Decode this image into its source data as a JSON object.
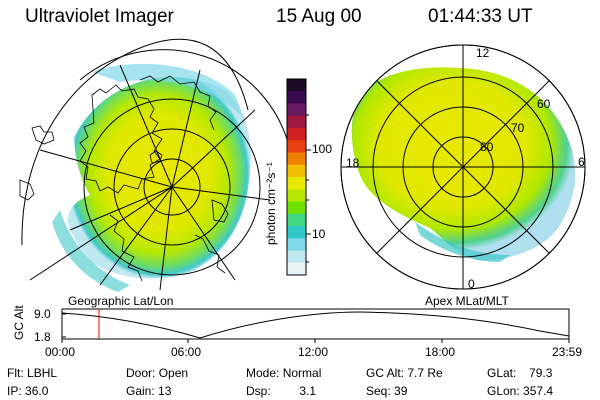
{
  "header": {
    "instrument": "Ultraviolet Imager",
    "date": "15 Aug 00",
    "time": "01:44:33 UT"
  },
  "left_map": {
    "projection_label": "Geographic Lat/Lon"
  },
  "right_map": {
    "projection_label": "Apex MLat/MLT",
    "mlt_labels": {
      "top": "12",
      "left": "18",
      "right": "6",
      "bottom": "0"
    },
    "lat_labels": [
      "60",
      "70",
      "80"
    ]
  },
  "colorbar": {
    "unit_label": "photon cm⁻²s⁻¹",
    "tick_labels": [
      "100",
      "10"
    ],
    "colors": [
      "#1a0a28",
      "#3a0a50",
      "#6a1a60",
      "#a01840",
      "#d02020",
      "#e84010",
      "#f08000",
      "#f0c000",
      "#e8e800",
      "#b8e800",
      "#70e000",
      "#40d880",
      "#30c8c8",
      "#80d8e8",
      "#c0e8f0",
      "#e8f4f8"
    ]
  },
  "altitude_plot": {
    "y_label": "GC Alt",
    "y_ticks": [
      "9.0",
      "1.8"
    ],
    "x_ticks": [
      "00:00",
      "06:00",
      "12:00",
      "18:00",
      "23:59"
    ],
    "current_time_fraction": 0.073,
    "marker_color": "#ff0000"
  },
  "info": {
    "filter": {
      "label": "Flt:",
      "value": "LBHL"
    },
    "ip": {
      "label": "IP:",
      "value": "36.0"
    },
    "door": {
      "label": "Door:",
      "value": "Open"
    },
    "gain": {
      "label": "Gain:",
      "value": "13"
    },
    "mode": {
      "label": "Mode:",
      "value": "Normal"
    },
    "dsp": {
      "label": "Dsp:",
      "value": "3.1"
    },
    "gc_alt": {
      "label": "GC Alt:",
      "value": "7.7 Re"
    },
    "seq": {
      "label": "Seq:",
      "value": "39"
    },
    "glat": {
      "label": "GLat:",
      "value": "79.3"
    },
    "glon": {
      "label": "GLon:",
      "value": "357.4"
    }
  }
}
